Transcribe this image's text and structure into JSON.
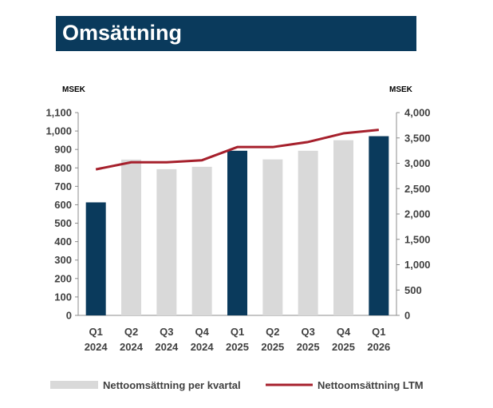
{
  "chart_data": {
    "type": "bar",
    "title": "Omsättning",
    "categories": [
      [
        "Q1",
        "2024"
      ],
      [
        "Q2",
        "2024"
      ],
      [
        "Q3",
        "2024"
      ],
      [
        "Q4",
        "2024"
      ],
      [
        "Q1",
        "2025"
      ],
      [
        "Q2",
        "2025"
      ],
      [
        "Q3",
        "2025"
      ],
      [
        "Q4",
        "2025"
      ],
      [
        "Q1",
        "2026"
      ]
    ],
    "highlight_categories": [
      0,
      4,
      8
    ],
    "y_left": {
      "label": "MSEK",
      "lim": [
        0,
        1100
      ],
      "ticks": [
        "0",
        "100",
        "200",
        "300",
        "400",
        "500",
        "600",
        "700",
        "800",
        "900",
        "1,000",
        "1,100"
      ]
    },
    "y_right": {
      "label": "MSEK",
      "lim": [
        0,
        4000
      ],
      "ticks": [
        "0",
        "500",
        "1,000",
        "1,500",
        "2,000",
        "2,500",
        "3,000",
        "3,500",
        "4,000"
      ]
    },
    "grid": false,
    "legend_position": "bottom",
    "series": [
      {
        "name": "Nettoomsättning per kvartal",
        "type": "bar",
        "axis": "left",
        "values": [
          613,
          845,
          793,
          806,
          893,
          846,
          893,
          950,
          972
        ]
      },
      {
        "name": "Nettoomsättning LTM",
        "type": "line",
        "axis": "right",
        "values": [
          2880,
          3020,
          3020,
          3060,
          3320,
          3320,
          3420,
          3590,
          3660
        ]
      }
    ],
    "colors": {
      "bar": "#d9d9d9",
      "bar_highlight": "#0a3a5c",
      "line": "#a6202c",
      "banner": "#0a3a5c"
    }
  }
}
